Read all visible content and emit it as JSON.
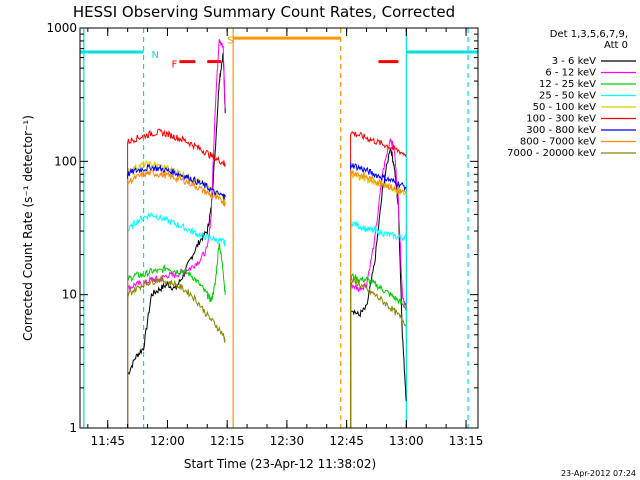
{
  "chart_data": {
    "type": "line",
    "title": "HESSI Observing Summary Count Rates, Corrected",
    "xlabel": "Start Time (23-Apr-12 11:38:02)",
    "ylabel": "Corrected Count Rate (s⁻¹ detector⁻¹)",
    "y_scale": "log",
    "ylim": [
      1,
      1000
    ],
    "xlim": [
      "11:38:02",
      "13:18:00"
    ],
    "x_ticks": [
      "11:45",
      "12:00",
      "12:15",
      "12:30",
      "12:45",
      "13:00",
      "13:15"
    ],
    "y_ticks": [
      {
        "value": 1,
        "label": "1"
      },
      {
        "value": 10,
        "label": "10"
      },
      {
        "value": 100,
        "label": "100"
      },
      {
        "value": 1000,
        "label": "1000"
      }
    ],
    "legend": {
      "placement": "outside-right",
      "header": [
        "Det 1,3,5,6,7,9,",
        "Att 0"
      ]
    },
    "footer_date": "23-Apr-2012 07:24",
    "annotations": [
      {
        "label": "N",
        "color": "#00e0e0"
      },
      {
        "label": "F",
        "color": "#ff0000"
      },
      {
        "label": "S",
        "color": "#ff9900"
      }
    ],
    "flag_bars": [
      {
        "name": "night",
        "color": "#00e0e0",
        "segments": [
          [
            "11:38:02",
            "11:54:00"
          ],
          [
            "13:00:00",
            "13:18:00"
          ]
        ],
        "level": 660
      },
      {
        "name": "flare",
        "color": "#ff0000",
        "segments": [
          [
            "12:03:00",
            "12:07:00"
          ],
          [
            "12:10:00",
            "12:13:30"
          ],
          [
            "12:53:00",
            "12:58:00"
          ]
        ],
        "level": 560
      },
      {
        "name": "saa",
        "color": "#ff9900",
        "segments": [
          [
            "12:16:30",
            "12:43:30"
          ]
        ],
        "level": 840
      }
    ],
    "vlines": [
      {
        "time": "11:39:00",
        "color": "#00e0e0",
        "style": "solid"
      },
      {
        "time": "11:54:00",
        "color": "#00e0e0",
        "style": "dashed"
      },
      {
        "time": "12:16:30",
        "color": "#ff9900",
        "style": "solid"
      },
      {
        "time": "12:43:30",
        "color": "#ff9900",
        "style": "dashed"
      },
      {
        "time": "13:00:00",
        "color": "#00e0e0",
        "style": "solid"
      },
      {
        "time": "13:15:30",
        "color": "#00e0e0",
        "style": "dashed"
      }
    ],
    "series": [
      {
        "name": "3 - 6 keV",
        "color": "#000000",
        "segments": [
          {
            "x": [
              "11:50",
              "11:52",
              "11:54",
              "11:56",
              "11:58",
              "12:00",
              "12:02",
              "12:04",
              "12:06",
              "12:08",
              "12:10",
              "12:11",
              "12:12",
              "12:13",
              "12:14",
              "12:14:30"
            ],
            "y": [
              2.5,
              3.4,
              4,
              10,
              11,
              12,
              11,
              14,
              19,
              25,
              30,
              45,
              120,
              400,
              650,
              230
            ]
          },
          {
            "x": [
              "12:46",
              "12:48",
              "12:50",
              "12:52",
              "12:54",
              "12:56",
              "12:57",
              "12:58",
              "12:59",
              "13:00"
            ],
            "y": [
              8,
              7,
              8,
              17,
              60,
              130,
              90,
              45,
              5,
              1.6
            ]
          }
        ]
      },
      {
        "name": "6 - 12 keV",
        "color": "#ff00ff",
        "segments": [
          {
            "x": [
              "11:50",
              "11:52",
              "11:54",
              "11:56",
              "11:58",
              "12:00",
              "12:02",
              "12:04",
              "12:06",
              "12:08",
              "12:10",
              "12:11",
              "12:12",
              "12:13",
              "12:14",
              "12:14:30"
            ],
            "y": [
              11,
              12,
              12,
              13,
              13,
              14,
              14,
              15,
              16,
              18,
              22,
              40,
              250,
              850,
              700,
              250
            ]
          },
          {
            "x": [
              "12:46",
              "12:48",
              "12:50",
              "12:52",
              "12:54",
              "12:56",
              "12:57",
              "12:58",
              "12:59",
              "13:00"
            ],
            "y": [
              12,
              11,
              12,
              25,
              80,
              150,
              120,
              50,
              10,
              8
            ]
          }
        ]
      },
      {
        "name": "12 - 25 keV",
        "color": "#00cc00",
        "segments": [
          {
            "x": [
              "11:50",
              "11:52",
              "11:54",
              "11:56",
              "11:58",
              "12:00",
              "12:02",
              "12:04",
              "12:06",
              "12:08",
              "12:10",
              "12:11",
              "12:12",
              "12:13",
              "12:14",
              "12:14:30"
            ],
            "y": [
              13,
              14,
              14,
              15,
              15,
              16,
              15,
              15,
              14,
              12,
              10,
              9,
              12,
              25,
              15,
              10
            ]
          },
          {
            "x": [
              "12:46",
              "12:48",
              "12:50",
              "12:52",
              "12:54",
              "12:56",
              "12:58",
              "13:00"
            ],
            "y": [
              14,
              13,
              13,
              12,
              11,
              10,
              9,
              8
            ]
          }
        ]
      },
      {
        "name": "25 - 50 keV",
        "color": "#00ffff",
        "segments": [
          {
            "x": [
              "11:50",
              "11:52",
              "11:54",
              "11:56",
              "11:58",
              "12:00",
              "12:02",
              "12:04",
              "12:06",
              "12:08",
              "12:10",
              "12:12",
              "12:14",
              "12:14:30"
            ],
            "y": [
              30,
              35,
              38,
              40,
              38,
              36,
              34,
              32,
              30,
              28,
              27,
              26,
              25,
              24
            ]
          },
          {
            "x": [
              "12:46",
              "12:48",
              "12:50",
              "12:52",
              "12:54",
              "12:56",
              "12:58",
              "13:00"
            ],
            "y": [
              35,
              33,
              31,
              30,
              29,
              28,
              27,
              27
            ]
          }
        ]
      },
      {
        "name": "50 - 100 keV",
        "color": "#ddcc00",
        "segments": [
          {
            "x": [
              "11:50",
              "11:52",
              "11:54",
              "11:56",
              "11:58",
              "12:00",
              "12:02",
              "12:04",
              "12:06",
              "12:08",
              "12:10",
              "12:12",
              "12:14",
              "12:14:30"
            ],
            "y": [
              85,
              90,
              95,
              95,
              92,
              88,
              85,
              80,
              75,
              70,
              65,
              58,
              55,
              52
            ]
          },
          {
            "x": [
              "12:46",
              "12:48",
              "12:50",
              "12:52",
              "12:54",
              "12:56",
              "12:58",
              "13:00"
            ],
            "y": [
              80,
              76,
              72,
              70,
              67,
              64,
              60,
              58
            ]
          }
        ]
      },
      {
        "name": "100 - 300 keV",
        "color": "#ff0000",
        "segments": [
          {
            "x": [
              "11:50",
              "11:52",
              "11:54",
              "11:56",
              "11:58",
              "12:00",
              "12:02",
              "12:04",
              "12:06",
              "12:08",
              "12:10",
              "12:12",
              "12:14",
              "12:14:30"
            ],
            "y": [
              140,
              148,
              155,
              162,
              165,
              160,
              152,
              145,
              135,
              125,
              115,
              105,
              98,
              95
            ]
          },
          {
            "x": [
              "12:46",
              "12:48",
              "12:50",
              "12:52",
              "12:54",
              "12:56",
              "12:58",
              "13:00"
            ],
            "y": [
              165,
              158,
              150,
              142,
              135,
              128,
              120,
              112
            ]
          }
        ]
      },
      {
        "name": "300 - 800 keV",
        "color": "#0000ff",
        "segments": [
          {
            "x": [
              "11:50",
              "11:52",
              "11:54",
              "11:56",
              "11:58",
              "12:00",
              "12:02",
              "12:04",
              "12:06",
              "12:08",
              "12:10",
              "12:12",
              "12:14",
              "12:14:30"
            ],
            "y": [
              80,
              85,
              88,
              90,
              88,
              85,
              82,
              78,
              74,
              69,
              64,
              58,
              55,
              54
            ]
          },
          {
            "x": [
              "12:46",
              "12:48",
              "12:50",
              "12:52",
              "12:54",
              "12:56",
              "12:58",
              "13:00"
            ],
            "y": [
              95,
              90,
              85,
              80,
              76,
              72,
              68,
              64
            ]
          }
        ]
      },
      {
        "name": "800 - 7000 keV",
        "color": "#ff8800",
        "segments": [
          {
            "x": [
              "11:50",
              "11:52",
              "11:54",
              "11:56",
              "11:58",
              "12:00",
              "12:02",
              "12:04",
              "12:06",
              "12:08",
              "12:10",
              "12:12",
              "12:14",
              "12:14:30"
            ],
            "y": [
              70,
              75,
              80,
              82,
              80,
              78,
              75,
              72,
              68,
              63,
              58,
              53,
              50,
              48
            ]
          },
          {
            "x": [
              "12:46",
              "12:48",
              "12:50",
              "12:52",
              "12:54",
              "12:56",
              "12:58",
              "13:00"
            ],
            "y": [
              85,
              80,
              76,
              72,
              68,
              64,
              60,
              57
            ]
          }
        ]
      },
      {
        "name": "7000 - 20000 keV",
        "color": "#888800",
        "segments": [
          {
            "x": [
              "11:50",
              "11:52",
              "11:54",
              "11:56",
              "11:58",
              "12:00",
              "12:02",
              "12:04",
              "12:06",
              "12:08",
              "12:10",
              "12:12",
              "12:14",
              "12:14:30"
            ],
            "y": [
              10,
              11,
              12,
              12.5,
              13,
              12.5,
              12,
              11,
              10,
              8.5,
              7,
              6,
              5,
              4.5
            ]
          },
          {
            "x": [
              "12:46",
              "12:48",
              "12:50",
              "12:52",
              "12:54",
              "12:56",
              "12:58",
              "13:00"
            ],
            "y": [
              13,
              12,
              11,
              10,
              9,
              8,
              7,
              6
            ]
          }
        ]
      }
    ]
  }
}
